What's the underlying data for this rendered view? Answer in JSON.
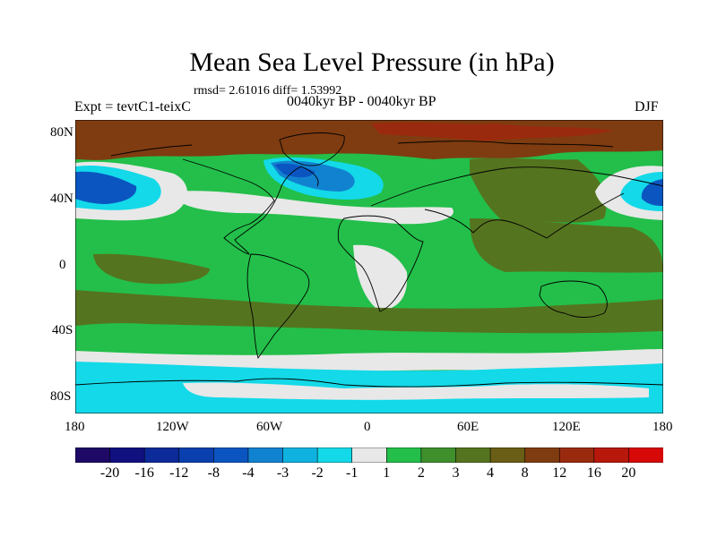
{
  "figure": {
    "title": "Mean Sea Level Pressure (in hPa)",
    "stats": "rmsd= 2.61016 diff= 1.53992",
    "experiment": "Expt = tevtC1-teixC",
    "period": "0040kyr BP - 0040kyr BP",
    "season": "DJF"
  },
  "map": {
    "lat_ticks": [
      "80N",
      "40N",
      "0",
      "40S",
      "80S"
    ],
    "lon_ticks": [
      "180",
      "120W",
      "60W",
      "0",
      "60E",
      "120E",
      "180"
    ],
    "lat_range": [
      -90,
      90
    ],
    "lon_range": [
      -180,
      180
    ]
  },
  "colorbar": {
    "labels": [
      "-20",
      "-16",
      "-12",
      "-8",
      "-4",
      "-3",
      "-2",
      "-1",
      "1",
      "2",
      "3",
      "4",
      "8",
      "12",
      "16",
      "20"
    ],
    "colors": [
      "#1e0a66",
      "#10107f",
      "#0c2a99",
      "#0a3fae",
      "#0b55c1",
      "#1182d0",
      "#0fb2df",
      "#13d9e8",
      "#e8e8e8",
      "#23bf4a",
      "#3f8f2d",
      "#55741f",
      "#6a5d15",
      "#7f3c10",
      "#9a2a0e",
      "#b8180c",
      "#d60808"
    ]
  }
}
